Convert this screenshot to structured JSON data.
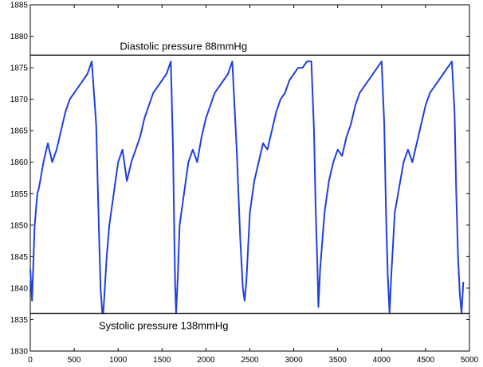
{
  "chart_data": {
    "type": "line",
    "title": "",
    "xlabel": "",
    "ylabel": "",
    "xlim": [
      0,
      5000
    ],
    "ylim": [
      1830,
      1885
    ],
    "xticks": [
      0,
      500,
      1000,
      1500,
      2000,
      2500,
      3000,
      3500,
      4000,
      4500,
      5000
    ],
    "yticks": [
      1830,
      1835,
      1840,
      1845,
      1850,
      1855,
      1860,
      1865,
      1870,
      1875,
      1880,
      1885
    ],
    "grid": false,
    "series_color": "#1f3fe0",
    "series": [
      {
        "x": [
          0,
          20,
          50,
          80,
          100,
          150,
          200,
          250,
          300,
          350,
          400,
          450,
          500,
          550,
          600,
          650,
          700,
          750,
          780,
          800,
          820,
          830,
          840,
          870,
          900,
          950,
          1000,
          1050,
          1100,
          1150,
          1200,
          1250,
          1300,
          1350,
          1400,
          1450,
          1500,
          1550,
          1600,
          1625,
          1640,
          1650,
          1660,
          1680,
          1700,
          1750,
          1800,
          1850,
          1900,
          1950,
          2000,
          2050,
          2100,
          2150,
          2200,
          2250,
          2300,
          2350,
          2390,
          2420,
          2440,
          2460,
          2500,
          2550,
          2600,
          2650,
          2700,
          2750,
          2800,
          2850,
          2900,
          2950,
          3000,
          3050,
          3100,
          3150,
          3200,
          3230,
          3250,
          3270,
          3280,
          3300,
          3350,
          3400,
          3450,
          3500,
          3550,
          3600,
          3650,
          3700,
          3750,
          3800,
          3850,
          3900,
          3950,
          4000,
          4030,
          4050,
          4070,
          4090,
          4110,
          4150,
          4200,
          4250,
          4300,
          4350,
          4400,
          4450,
          4500,
          4550,
          4600,
          4650,
          4700,
          4750,
          4800,
          4830,
          4850,
          4870,
          4890,
          4910,
          4930
        ],
        "y": [
          1843,
          1838,
          1850,
          1855,
          1856,
          1860,
          1863,
          1860,
          1862,
          1865,
          1868,
          1870,
          1871,
          1872,
          1873,
          1874,
          1876,
          1866,
          1850,
          1840,
          1836,
          1836,
          1838,
          1845,
          1850,
          1855,
          1860,
          1862,
          1857,
          1860,
          1862,
          1864,
          1867,
          1869,
          1871,
          1872,
          1873,
          1874,
          1876,
          1862,
          1848,
          1840,
          1836,
          1842,
          1850,
          1855,
          1860,
          1862,
          1860,
          1864,
          1867,
          1869,
          1871,
          1872,
          1873,
          1874,
          1876,
          1862,
          1848,
          1840,
          1838,
          1841,
          1852,
          1857,
          1860,
          1863,
          1862,
          1865,
          1868,
          1870,
          1871,
          1873,
          1874,
          1875,
          1875,
          1876,
          1876,
          1865,
          1852,
          1843,
          1837,
          1843,
          1852,
          1857,
          1860,
          1862,
          1861,
          1864,
          1866,
          1869,
          1871,
          1872,
          1873,
          1874,
          1875,
          1876,
          1866,
          1852,
          1842,
          1836,
          1842,
          1852,
          1856,
          1860,
          1862,
          1860,
          1863,
          1866,
          1869,
          1871,
          1872,
          1873,
          1874,
          1875,
          1876,
          1868,
          1855,
          1845,
          1839,
          1836,
          1841
        ]
      }
    ],
    "reference_lines": [
      {
        "y": 1877,
        "label": "Diastolic pressure 88mmHg",
        "label_x": 1020
      },
      {
        "y": 1836,
        "label": "Systolic pressure 138mmHg",
        "label_x": 780
      }
    ]
  }
}
